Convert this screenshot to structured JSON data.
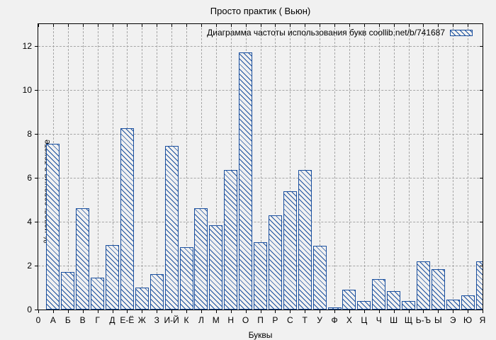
{
  "window": {
    "title": "Просто практик ( Вьюн)"
  },
  "colors": {
    "bar": "#1a4f9e",
    "grid": "#a6a6a6",
    "background": "#f1f1f1",
    "axis": "#000000"
  },
  "chart_data": {
    "type": "bar",
    "title": "Просто практик ( Вьюн)",
    "legend_label": "Диаграмма частоты использования букв coollib.net/b/741687",
    "legend_position": "top-right",
    "xlabel": "Буквы",
    "ylabel": "% использования в тексте",
    "origin_tick_label": "0",
    "categories": [
      "А",
      "Б",
      "В",
      "Г",
      "Д",
      "Е-Ё",
      "Ж",
      "З",
      "И-Й",
      "К",
      "Л",
      "М",
      "Н",
      "О",
      "П",
      "Р",
      "С",
      "Т",
      "У",
      "Ф",
      "Х",
      "Ц",
      "Ч",
      "Ш",
      "Щ",
      "Ь-Ъ",
      "Ы",
      "Э",
      "Ю",
      "Я"
    ],
    "values": [
      7.55,
      1.7,
      4.6,
      1.45,
      2.95,
      8.25,
      1.0,
      1.6,
      7.45,
      2.85,
      4.6,
      3.85,
      6.35,
      11.7,
      3.05,
      4.3,
      5.4,
      6.35,
      2.9,
      0.1,
      0.9,
      0.4,
      1.4,
      0.85,
      0.4,
      2.2,
      1.85,
      0.45,
      0.65,
      2.2
    ],
    "ylim": [
      0,
      13
    ],
    "yticks": [
      0,
      2,
      4,
      6,
      8,
      10,
      12
    ],
    "grid": true,
    "hatch": "diagonal-down"
  }
}
